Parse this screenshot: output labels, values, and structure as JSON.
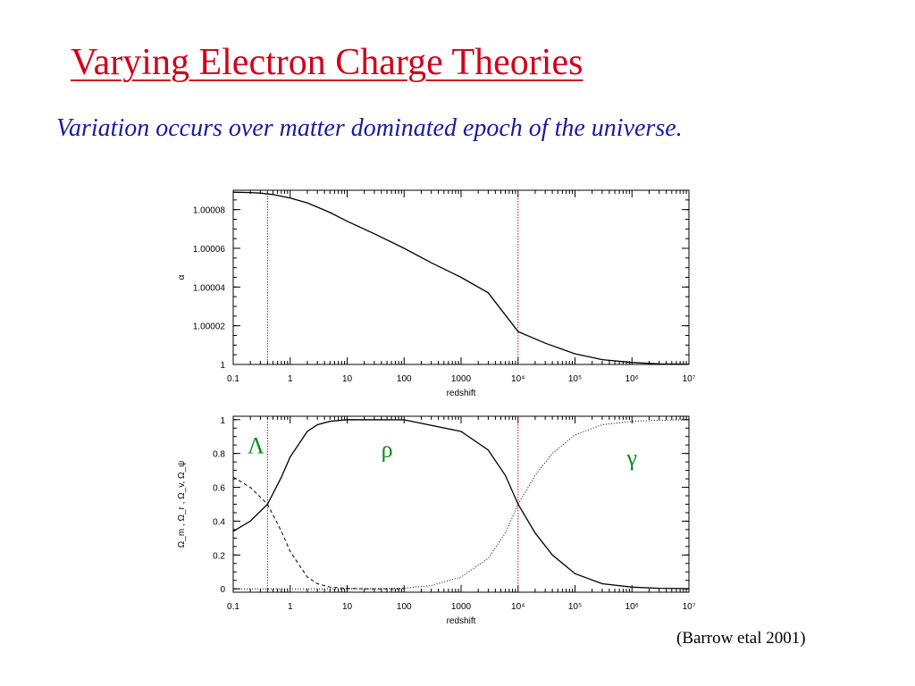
{
  "slide": {
    "title": "Varying Electron Charge Theories",
    "subtitle": "Variation occurs over matter dominated epoch of the universe.",
    "citation": "(Barrow etal 2001)",
    "title_color": "#d0021b",
    "subtitle_color": "#1a1aa0",
    "annotation_color": "#0a8a1a",
    "marker_color": "#d0021b"
  },
  "chart_data": [
    {
      "type": "line",
      "xlabel": "redshift",
      "ylabel": "α",
      "x_scale": "log",
      "xlim": [
        0.1,
        10000000
      ],
      "ylim": [
        1,
        1.00009
      ],
      "x_ticks": [
        {
          "value": 0.1,
          "label": "0.1"
        },
        {
          "value": 1,
          "label": "1"
        },
        {
          "value": 10,
          "label": "10"
        },
        {
          "value": 100,
          "label": "100"
        },
        {
          "value": 1000,
          "label": "1000"
        },
        {
          "value": 10000,
          "label": "10⁴"
        },
        {
          "value": 100000,
          "label": "10⁵"
        },
        {
          "value": 1000000,
          "label": "10⁶"
        },
        {
          "value": 10000000,
          "label": "10⁷"
        }
      ],
      "y_ticks": [
        {
          "value": 1,
          "label": "1"
        },
        {
          "value": 1.00002,
          "label": "1.00002"
        },
        {
          "value": 1.00004,
          "label": "1.00004"
        },
        {
          "value": 1.00006,
          "label": "1.00006"
        },
        {
          "value": 1.00008,
          "label": "1.00008"
        }
      ],
      "vertical_markers": [
        0.4,
        10000
      ],
      "series": [
        {
          "style": "solid",
          "x": [
            0.1,
            0.2,
            0.3,
            0.5,
            1,
            2,
            5,
            10,
            30,
            100,
            300,
            1000,
            3000,
            10000,
            30000,
            100000,
            300000,
            1000000,
            3000000,
            10000000
          ],
          "y": [
            1.000089,
            1.0000888,
            1.0000885,
            1.0000878,
            1.000086,
            1.0000835,
            1.0000785,
            1.000074,
            1.0000675,
            1.00006,
            1.0000525,
            1.000045,
            1.000037,
            1.000017,
            1.000011,
            1.0000055,
            1.0000025,
            1.000001,
            1.0000003,
            1.0000001
          ]
        }
      ]
    },
    {
      "type": "line",
      "xlabel": "redshift",
      "ylabel": "Ω_m , Ω_r , Ω_v, Ω_ψ",
      "x_scale": "log",
      "xlim": [
        0.1,
        10000000
      ],
      "ylim": [
        -0.02,
        1.02
      ],
      "x_ticks": [
        {
          "value": 0.1,
          "label": "0.1"
        },
        {
          "value": 1,
          "label": "1"
        },
        {
          "value": 10,
          "label": "10"
        },
        {
          "value": 100,
          "label": "100"
        },
        {
          "value": 1000,
          "label": "1000"
        },
        {
          "value": 10000,
          "label": "10⁴"
        },
        {
          "value": 100000,
          "label": "10⁵"
        },
        {
          "value": 1000000,
          "label": "10⁶"
        },
        {
          "value": 10000000,
          "label": "10⁷"
        }
      ],
      "y_ticks": [
        {
          "value": 0,
          "label": "0"
        },
        {
          "value": 0.2,
          "label": "0.2"
        },
        {
          "value": 0.4,
          "label": "0.4"
        },
        {
          "value": 0.6,
          "label": "0.6"
        },
        {
          "value": 0.8,
          "label": "0.8"
        },
        {
          "value": 1,
          "label": "1"
        }
      ],
      "vertical_markers": [
        0.4,
        10000
      ],
      "annotations": [
        {
          "text": "Λ",
          "x": 0.25,
          "y": 0.8
        },
        {
          "text": "ρ",
          "x": 50,
          "y": 0.78
        },
        {
          "text": "γ",
          "x": 1000000,
          "y": 0.73
        }
      ],
      "series": [
        {
          "name": "ρ",
          "style": "solid",
          "x": [
            0.1,
            0.2,
            0.4,
            0.7,
            1,
            2,
            3,
            5,
            10,
            100,
            1000,
            3000,
            6000,
            10000,
            20000,
            40000,
            100000,
            300000,
            1000000,
            3000000,
            10000000
          ],
          "y": [
            0.34,
            0.4,
            0.5,
            0.66,
            0.78,
            0.93,
            0.97,
            0.99,
            1.0,
            0.999,
            0.93,
            0.82,
            0.67,
            0.5,
            0.33,
            0.2,
            0.09,
            0.03,
            0.01,
            0.003,
            0.001
          ]
        },
        {
          "name": "Λ",
          "style": "dashed",
          "x": [
            0.1,
            0.2,
            0.4,
            0.7,
            1,
            2,
            3,
            5,
            10,
            20,
            100
          ],
          "y": [
            0.66,
            0.6,
            0.5,
            0.34,
            0.22,
            0.07,
            0.03,
            0.01,
            0.003,
            0.0,
            0.0
          ]
        },
        {
          "name": "γ",
          "style": "dotted",
          "x": [
            0.1,
            10,
            30,
            100,
            300,
            1000,
            3000,
            6000,
            10000,
            20000,
            40000,
            100000,
            300000,
            1000000,
            3000000,
            10000000
          ],
          "y": [
            0.0,
            0.0,
            0.001,
            0.004,
            0.02,
            0.07,
            0.18,
            0.33,
            0.5,
            0.67,
            0.8,
            0.91,
            0.97,
            0.99,
            0.997,
            0.999
          ]
        }
      ]
    }
  ]
}
